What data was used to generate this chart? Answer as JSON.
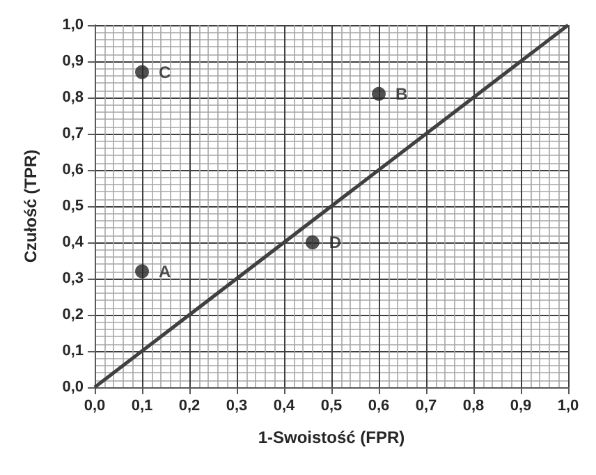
{
  "chart_data": {
    "type": "scatter",
    "xlabel": "1-Swoistość (FPR)",
    "ylabel": "Czułość (TPR)",
    "xlim": [
      0,
      1
    ],
    "ylim": [
      0,
      1
    ],
    "xticks": [
      {
        "value": 0,
        "label": "0,0"
      },
      {
        "value": 0.1,
        "label": "0,1"
      },
      {
        "value": 0.2,
        "label": "0,2"
      },
      {
        "value": 0.3,
        "label": "0,3"
      },
      {
        "value": 0.4,
        "label": "0,4"
      },
      {
        "value": 0.5,
        "label": "0,5"
      },
      {
        "value": 0.6,
        "label": "0,6"
      },
      {
        "value": 0.7,
        "label": "0,7"
      },
      {
        "value": 0.8,
        "label": "0,8"
      },
      {
        "value": 0.9,
        "label": "0,9"
      },
      {
        "value": 1,
        "label": "1,0"
      }
    ],
    "yticks": [
      {
        "value": 0,
        "label": "0,0"
      },
      {
        "value": 0.1,
        "label": "0,1"
      },
      {
        "value": 0.2,
        "label": "0,2"
      },
      {
        "value": 0.3,
        "label": "0,3"
      },
      {
        "value": 0.4,
        "label": "0,4"
      },
      {
        "value": 0.5,
        "label": "0,5"
      },
      {
        "value": 0.6,
        "label": "0,6"
      },
      {
        "value": 0.7,
        "label": "0,7"
      },
      {
        "value": 0.8,
        "label": "0,8"
      },
      {
        "value": 0.9,
        "label": "0,9"
      },
      {
        "value": 1,
        "label": "1,0"
      }
    ],
    "grid": true,
    "marker": "circle",
    "legend": false,
    "series": [
      {
        "type": "line",
        "x": [
          0,
          1
        ],
        "values": [
          0,
          1
        ],
        "color": "#404040",
        "line_style": "solid",
        "marker": "none"
      },
      {
        "name": "A",
        "x": [
          0.1
        ],
        "values": [
          0.32
        ],
        "color": "#262626"
      },
      {
        "name": "B",
        "x": [
          0.6
        ],
        "values": [
          0.81
        ],
        "color": "#262626"
      },
      {
        "name": "C",
        "x": [
          0.1
        ],
        "values": [
          0.87
        ],
        "color": "#262626"
      },
      {
        "name": "D",
        "x": [
          0.46
        ],
        "values": [
          0.4
        ],
        "color": "#262626"
      }
    ]
  }
}
